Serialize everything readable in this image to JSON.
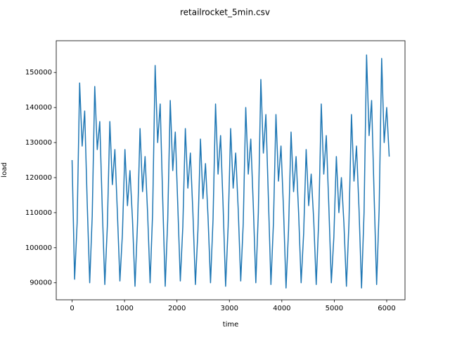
{
  "chart_data": {
    "type": "line",
    "title": "retailrocket_5min.csv",
    "x_label": "time",
    "y_label": "load",
    "color": "#1f77b4",
    "x": [
      0,
      48,
      96,
      144,
      192,
      240,
      288,
      336,
      384,
      432,
      480,
      528,
      576,
      624,
      672,
      720,
      768,
      816,
      864,
      912,
      960,
      1008,
      1056,
      1104,
      1152,
      1200,
      1248,
      1296,
      1344,
      1392,
      1440,
      1488,
      1536,
      1584,
      1632,
      1680,
      1728,
      1776,
      1824,
      1872,
      1920,
      1968,
      2016,
      2064,
      2112,
      2160,
      2208,
      2256,
      2304,
      2352,
      2400,
      2448,
      2496,
      2544,
      2592,
      2640,
      2688,
      2736,
      2784,
      2832,
      2880,
      2928,
      2976,
      3024,
      3072,
      3120,
      3168,
      3216,
      3264,
      3312,
      3360,
      3408,
      3456,
      3504,
      3552,
      3600,
      3648,
      3696,
      3744,
      3792,
      3840,
      3888,
      3936,
      3984,
      4032,
      4080,
      4128,
      4176,
      4224,
      4272,
      4320,
      4368,
      4416,
      4464,
      4512,
      4560,
      4608,
      4656,
      4704,
      4752,
      4800,
      4848,
      4896,
      4944,
      4992,
      5040,
      5088,
      5136,
      5184,
      5232,
      5280,
      5328,
      5376,
      5424,
      5472,
      5520,
      5568,
      5616,
      5664,
      5712,
      5760,
      5808,
      5856,
      5904,
      5952,
      6000,
      6048
    ],
    "values": [
      125000,
      91000,
      107000,
      147000,
      129000,
      139000,
      113000,
      90000,
      109000,
      146000,
      128000,
      136000,
      111000,
      89500,
      106000,
      136000,
      118000,
      128000,
      110000,
      90500,
      104000,
      128000,
      112000,
      122000,
      108000,
      89000,
      107000,
      134000,
      116000,
      126000,
      110000,
      90000,
      110000,
      152000,
      130000,
      141000,
      114000,
      89000,
      108000,
      142000,
      122000,
      133000,
      112000,
      90500,
      106000,
      134000,
      117000,
      127000,
      110000,
      89500,
      105000,
      131000,
      114000,
      124000,
      109000,
      90000,
      108000,
      141000,
      121000,
      132000,
      112000,
      89000,
      106000,
      134000,
      117000,
      127000,
      111000,
      90500,
      107000,
      140000,
      121000,
      131000,
      112000,
      90000,
      110000,
      148000,
      127000,
      138000,
      114000,
      89500,
      107000,
      138000,
      119000,
      129000,
      111000,
      88500,
      105000,
      133000,
      116000,
      126000,
      110000,
      90000,
      104000,
      128000,
      112000,
      121000,
      108000,
      89500,
      108000,
      141000,
      121000,
      132000,
      112000,
      90000,
      103000,
      126000,
      110000,
      120000,
      107000,
      89000,
      107000,
      138000,
      119000,
      129000,
      111000,
      88500,
      110000,
      155000,
      132000,
      142000,
      115000,
      89500,
      111000,
      154000,
      130000,
      140000,
      126000
    ],
    "xlim": [
      -302,
      6349
    ],
    "ylim": [
      85140,
      159060
    ],
    "xticks": [
      0,
      1000,
      2000,
      3000,
      4000,
      5000,
      6000
    ],
    "yticks": [
      90000,
      100000,
      110000,
      120000,
      130000,
      140000,
      150000
    ]
  }
}
